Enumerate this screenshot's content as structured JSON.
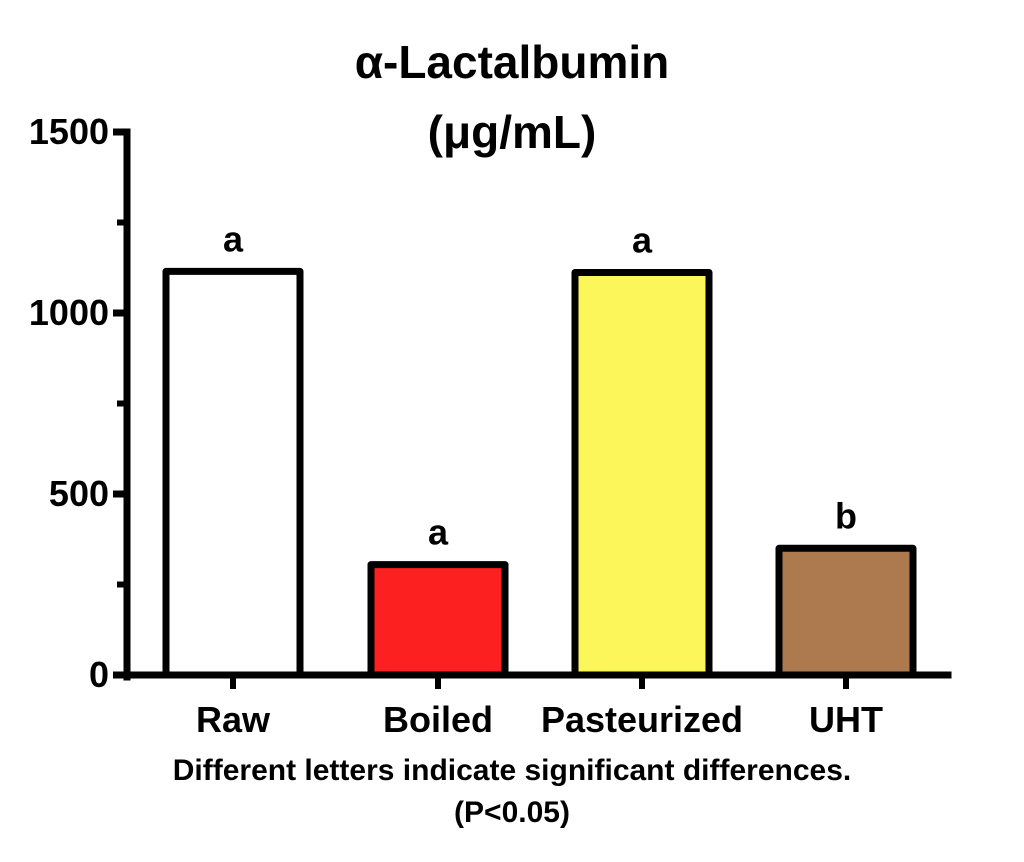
{
  "chart_data": {
    "type": "bar",
    "title_line1": "α-Lactalbumin",
    "title_line2": "(μg/mL)",
    "categories": [
      "Raw",
      "Boiled",
      "Pasteurized",
      "UHT"
    ],
    "values": [
      1115,
      305,
      1112,
      350
    ],
    "significance_letters": [
      "a",
      "a",
      "a",
      "b"
    ],
    "bar_colors": [
      "#ffffff",
      "#fd2020",
      "#fdf65a",
      "#ac7a4e"
    ],
    "ylim": [
      0,
      1500
    ],
    "y_ticks": [
      0,
      500,
      1000,
      1500
    ],
    "y_tick_labels": [
      "0",
      "500",
      "1000",
      "1500"
    ],
    "y_minor_ticks": [
      250,
      750,
      1250
    ],
    "xlabel": "",
    "ylabel": "",
    "grid": false,
    "legend": "none"
  },
  "footnote": {
    "line1": "Different letters indicate significant differences.",
    "line2": "(P<0.05)"
  }
}
